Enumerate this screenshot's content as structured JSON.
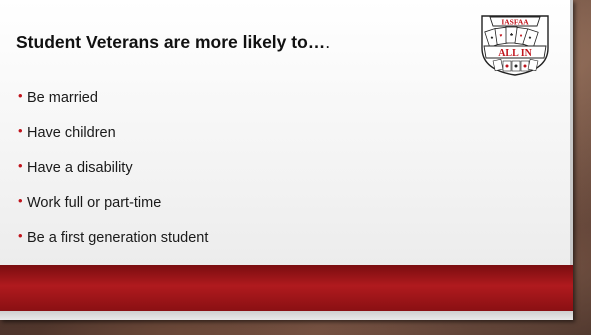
{
  "slide": {
    "title_main": "Student Veterans are more likely to…",
    "title_tail": ".",
    "bullet_glyph": "•",
    "bullets": [
      "Be married",
      "Have children",
      "Have a disability",
      "Work full or part-time",
      "Be a first generation student"
    ],
    "logo": {
      "top_text": "IASFAA",
      "bottom_text": "ALL IN",
      "icon": "playing-cards-logo"
    },
    "colors": {
      "bullet": "#c0141c",
      "band": "#b01a1e",
      "logo_red": "#c0141c"
    }
  }
}
